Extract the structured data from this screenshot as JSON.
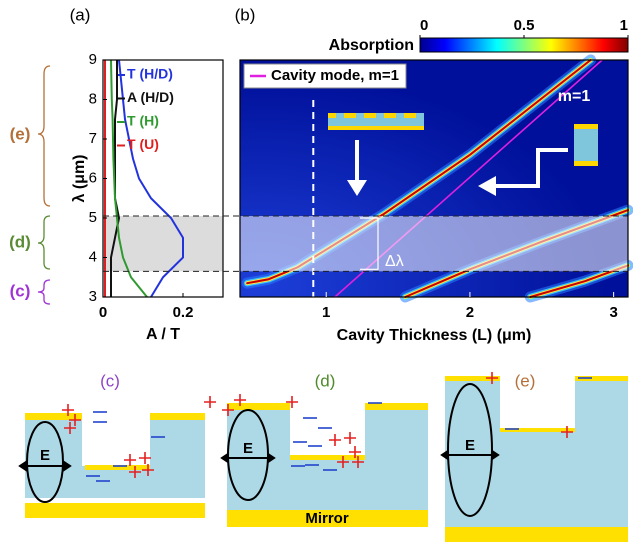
{
  "panel_labels": [
    "(a)",
    "(b)"
  ],
  "side_labels": [
    {
      "text": "(e)",
      "color": "#b5703a"
    },
    {
      "text": "(d)",
      "color": "#5b8c35"
    },
    {
      "text": "(c)",
      "color": "#a033d6"
    }
  ],
  "chart_data": [
    {
      "type": "line",
      "x_label": "A / T",
      "y_label": "λ (μm)",
      "y": [
        3,
        3.5,
        4,
        4.5,
        5,
        5.5,
        6,
        6.5,
        7,
        7.5,
        8,
        8.5,
        9
      ],
      "series": [
        {
          "name": "T (H/D)",
          "color": "#2233dd",
          "values": [
            0.12,
            0.15,
            0.2,
            0.2,
            0.17,
            0.12,
            0.09,
            0.075,
            0.065,
            0.055,
            0.05,
            0.045,
            0.04
          ]
        },
        {
          "name": "A (H/D)",
          "color": "#111111",
          "values": [
            0.02,
            0.02,
            0.02,
            0.03,
            0.04,
            0.03,
            0.03,
            0.03,
            0.03,
            0.03,
            0.035,
            0.035,
            0.035
          ]
        },
        {
          "name": "T (H)",
          "color": "#2f9a2f",
          "values": [
            0.11,
            0.07,
            0.05,
            0.04,
            0.035,
            0.03,
            0.028,
            0.026,
            0.025,
            0.024,
            0.022,
            0.021,
            0.02
          ]
        },
        {
          "name": "T (U)",
          "color": "#e02020",
          "values": [
            0.005,
            0.005,
            0.005,
            0.005,
            0.005,
            0.005,
            0.005,
            0.005,
            0.005,
            0.005,
            0.005,
            0.005,
            0.005
          ]
        }
      ],
      "xlim": [
        0,
        0.3
      ],
      "xticks": [
        0,
        0.2
      ],
      "ylim": [
        3,
        9
      ],
      "yticks": [
        3,
        4,
        5,
        6,
        7,
        8,
        9
      ],
      "band": [
        3.65,
        5.05
      ]
    },
    {
      "type": "heatmap",
      "x_label": "Cavity Thickness (L) (μm)",
      "colorbar_label": "Absorption",
      "clim": [
        0,
        1
      ],
      "colorbar_ticks": [
        0,
        0.5,
        1
      ],
      "xlim": [
        0.4,
        3.1
      ],
      "xticks": [
        1,
        2,
        3
      ],
      "ylim": [
        3,
        9
      ],
      "series": [
        {
          "name": "Cavity mode, m=1",
          "color": "#e020e0",
          "x": [
            1.06,
            2.92
          ],
          "values": [
            3,
            9
          ]
        }
      ],
      "resonances": [
        {
          "x": [
            0.45,
            0.6,
            0.8,
            1.0,
            1.4,
            2.0,
            2.84
          ],
          "values": [
            3.35,
            3.45,
            3.75,
            4.2,
            5.1,
            6.6,
            9
          ]
        },
        {
          "x": [
            1.55,
            2.0,
            2.5,
            3.1
          ],
          "values": [
            3,
            3.7,
            4.4,
            5.2
          ]
        },
        {
          "x": [
            2.42,
            2.8,
            3.1
          ],
          "values": [
            3,
            3.4,
            3.8
          ]
        }
      ],
      "annotations": [
        "m=1",
        "Δλ"
      ],
      "marker_x": 0.91,
      "band": [
        3.65,
        5.05
      ]
    }
  ],
  "diagrams": [
    {
      "label": "(c)",
      "field": "E"
    },
    {
      "label": "(d)",
      "field": "E",
      "substrate": "Mirror"
    },
    {
      "label": "(e)",
      "field": "E"
    }
  ]
}
